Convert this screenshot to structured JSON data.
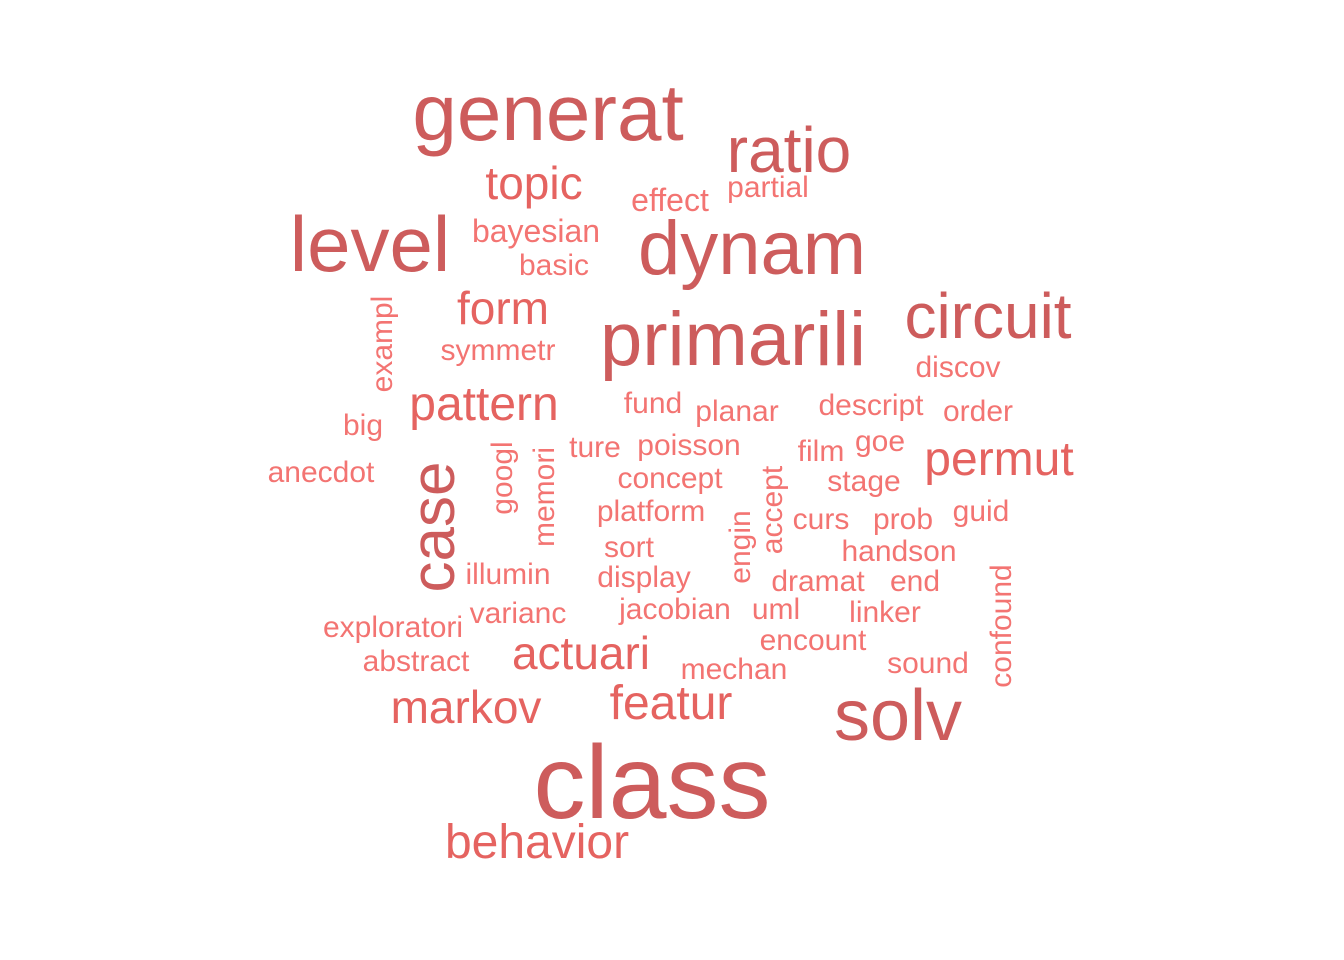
{
  "palette": {
    "dark": "#cd5c5c",
    "mid": "#e56360",
    "light": "#f37472"
  },
  "words": [
    {
      "text": "class",
      "tone": "dark",
      "vertical": false
    },
    {
      "text": "generat",
      "tone": "dark",
      "vertical": false
    },
    {
      "text": "primarili",
      "tone": "dark",
      "vertical": false
    },
    {
      "text": "dynam",
      "tone": "dark",
      "vertical": false
    },
    {
      "text": "solv",
      "tone": "dark",
      "vertical": false
    },
    {
      "text": "level",
      "tone": "dark",
      "vertical": false
    },
    {
      "text": "ratio",
      "tone": "dark",
      "vertical": false
    },
    {
      "text": "circuit",
      "tone": "dark",
      "vertical": false
    },
    {
      "text": "case",
      "tone": "dark",
      "vertical": true
    },
    {
      "text": "behavior",
      "tone": "mid",
      "vertical": false
    },
    {
      "text": "topic",
      "tone": "mid",
      "vertical": false
    },
    {
      "text": "pattern",
      "tone": "mid",
      "vertical": false
    },
    {
      "text": "actuari",
      "tone": "mid",
      "vertical": false
    },
    {
      "text": "featur",
      "tone": "mid",
      "vertical": false
    },
    {
      "text": "markov",
      "tone": "mid",
      "vertical": false
    },
    {
      "text": "form",
      "tone": "mid",
      "vertical": false
    },
    {
      "text": "permut",
      "tone": "mid",
      "vertical": false
    },
    {
      "text": "effect",
      "tone": "light",
      "vertical": false
    },
    {
      "text": "partial",
      "tone": "light",
      "vertical": false
    },
    {
      "text": "bayesian",
      "tone": "light",
      "vertical": false
    },
    {
      "text": "basic",
      "tone": "light",
      "vertical": false
    },
    {
      "text": "symmetr",
      "tone": "light",
      "vertical": false
    },
    {
      "text": "exampl",
      "tone": "light",
      "vertical": true
    },
    {
      "text": "discov",
      "tone": "light",
      "vertical": false
    },
    {
      "text": "fund",
      "tone": "light",
      "vertical": false
    },
    {
      "text": "planar",
      "tone": "light",
      "vertical": false
    },
    {
      "text": "descript",
      "tone": "light",
      "vertical": false
    },
    {
      "text": "order",
      "tone": "light",
      "vertical": false
    },
    {
      "text": "big",
      "tone": "light",
      "vertical": false
    },
    {
      "text": "anecdot",
      "tone": "light",
      "vertical": false
    },
    {
      "text": "googl",
      "tone": "light",
      "vertical": true
    },
    {
      "text": "memori",
      "tone": "light",
      "vertical": true
    },
    {
      "text": "ture",
      "tone": "light",
      "vertical": false
    },
    {
      "text": "poisson",
      "tone": "light",
      "vertical": false
    },
    {
      "text": "film",
      "tone": "light",
      "vertical": false
    },
    {
      "text": "goe",
      "tone": "light",
      "vertical": false
    },
    {
      "text": "concept",
      "tone": "light",
      "vertical": false
    },
    {
      "text": "stage",
      "tone": "light",
      "vertical": false
    },
    {
      "text": "accept",
      "tone": "light",
      "vertical": true
    },
    {
      "text": "platform",
      "tone": "light",
      "vertical": false
    },
    {
      "text": "curs",
      "tone": "light",
      "vertical": false
    },
    {
      "text": "prob",
      "tone": "light",
      "vertical": false
    },
    {
      "text": "guid",
      "tone": "light",
      "vertical": false
    },
    {
      "text": "engin",
      "tone": "light",
      "vertical": true
    },
    {
      "text": "sort",
      "tone": "light",
      "vertical": false
    },
    {
      "text": "handson",
      "tone": "light",
      "vertical": false
    },
    {
      "text": "illumin",
      "tone": "light",
      "vertical": false
    },
    {
      "text": "display",
      "tone": "light",
      "vertical": false
    },
    {
      "text": "dramat",
      "tone": "light",
      "vertical": false
    },
    {
      "text": "end",
      "tone": "light",
      "vertical": false
    },
    {
      "text": "confound",
      "tone": "light",
      "vertical": true
    },
    {
      "text": "exploratori",
      "tone": "light",
      "vertical": false
    },
    {
      "text": "varianc",
      "tone": "light",
      "vertical": false
    },
    {
      "text": "jacobian",
      "tone": "light",
      "vertical": false
    },
    {
      "text": "uml",
      "tone": "light",
      "vertical": false
    },
    {
      "text": "linker",
      "tone": "light",
      "vertical": false
    },
    {
      "text": "encount",
      "tone": "light",
      "vertical": false
    },
    {
      "text": "abstract",
      "tone": "light",
      "vertical": false
    },
    {
      "text": "mechan",
      "tone": "light",
      "vertical": false
    },
    {
      "text": "sound",
      "tone": "light",
      "vertical": false
    }
  ]
}
